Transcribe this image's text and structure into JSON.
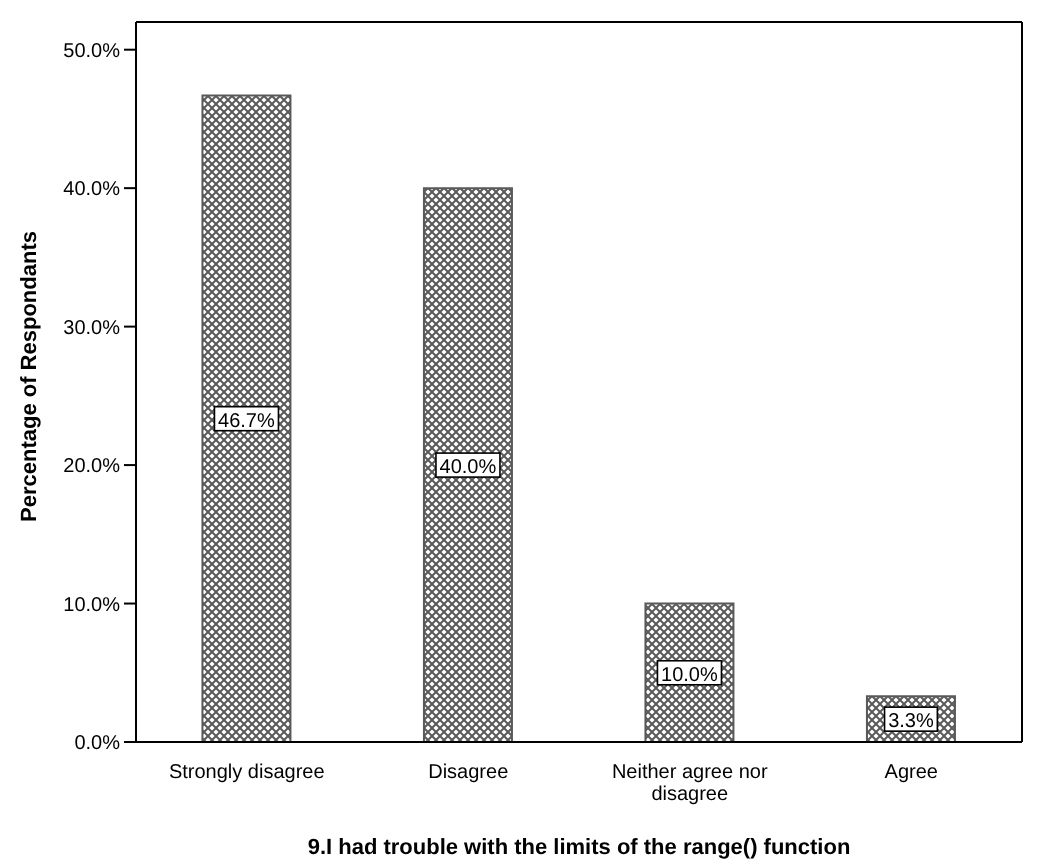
{
  "chart_data": {
    "type": "bar",
    "xlabel": "9.I had trouble with the limits of the range() function",
    "ylabel": "Percentage of Respondants",
    "categories": [
      "Strongly disagree",
      "Disagree",
      "Neither agree nor disagree",
      "Agree"
    ],
    "values": [
      46.7,
      40.0,
      10.0,
      3.3
    ],
    "value_labels": [
      "46.7%",
      "40.0%",
      "10.0%",
      "3.3%"
    ],
    "color": "#595959",
    "ylim": [
      0,
      52
    ],
    "yticks": [
      {
        "value": 0,
        "label": "0.0%"
      },
      {
        "value": 10,
        "label": "10.0%"
      },
      {
        "value": 20,
        "label": "20.0%"
      },
      {
        "value": 30,
        "label": "30.0%"
      },
      {
        "value": 40,
        "label": "40.0%"
      },
      {
        "value": 50,
        "label": "50.0%"
      }
    ],
    "grid": false,
    "legend": false
  }
}
